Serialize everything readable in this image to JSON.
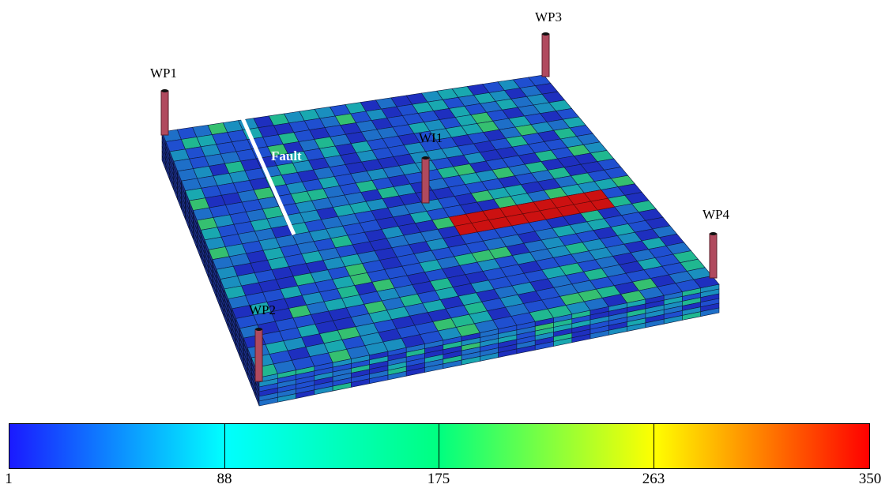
{
  "wells": {
    "wp1": "WP1",
    "wp2": "WP2",
    "wp3": "WP3",
    "wp4": "WP4",
    "wi1": "WI1"
  },
  "fault_label": "Fault",
  "colorbar": {
    "ticks": [
      "1",
      "88",
      "175",
      "263",
      "350"
    ],
    "colors": [
      "#1a1aff",
      "#00ffff",
      "#00ff80",
      "#ffff00",
      "#ff0000"
    ]
  },
  "grid": {
    "cell_palette": [
      "#1e2fbf",
      "#1f4fd0",
      "#1e6fc8",
      "#1a8fbf",
      "#19a8b0",
      "#20b890",
      "#35c070"
    ],
    "barrier_color": "#cc1111"
  }
}
